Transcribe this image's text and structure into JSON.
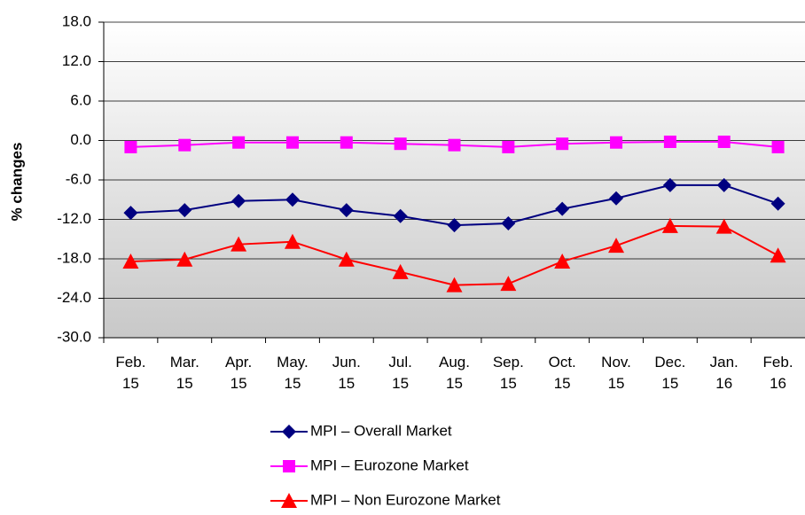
{
  "chart_data": {
    "type": "line",
    "y_label": "% changes",
    "categories": [
      "Feb. 15",
      "Mar. 15",
      "Apr. 15",
      "May. 15",
      "Jun. 15",
      "Jul. 15",
      "Aug. 15",
      "Sep. 15",
      "Oct. 15",
      "Nov. 15",
      "Dec. 15",
      "Jan. 16",
      "Feb. 16"
    ],
    "series": [
      {
        "name": "MPI – Overall Market",
        "color": "#000080",
        "marker": "diamond",
        "values": [
          -11.0,
          -10.6,
          -9.2,
          -9.0,
          -10.6,
          -11.5,
          -12.9,
          -12.6,
          -10.4,
          -8.8,
          -6.8,
          -6.8,
          -9.6
        ]
      },
      {
        "name": "MPI – Eurozone Market",
        "color": "#ff00ff",
        "marker": "square",
        "values": [
          -1.0,
          -0.7,
          -0.3,
          -0.3,
          -0.3,
          -0.5,
          -0.7,
          -1.0,
          -0.5,
          -0.3,
          -0.2,
          -0.2,
          -1.0
        ]
      },
      {
        "name": "MPI – Non Eurozone Market",
        "color": "#ff0000",
        "marker": "triangle",
        "values": [
          -18.4,
          -18.1,
          -15.8,
          -15.4,
          -18.1,
          -20.0,
          -22.0,
          -21.8,
          -18.4,
          -16.0,
          -13.0,
          -13.1,
          -17.5
        ]
      }
    ],
    "ylim": [
      -30,
      18
    ],
    "yticks": [
      {
        "value": -30,
        "label": "-30.0"
      },
      {
        "value": -24,
        "label": "-24.0"
      },
      {
        "value": -18,
        "label": "-18.0"
      },
      {
        "value": -12,
        "label": "-12.0"
      },
      {
        "value": -6,
        "label": "-6.0"
      },
      {
        "value": 0,
        "label": "0.0"
      },
      {
        "value": 6,
        "label": "6.0"
      },
      {
        "value": 12,
        "label": "12.0"
      },
      {
        "value": 18,
        "label": "18.0"
      }
    ],
    "grid": true
  }
}
